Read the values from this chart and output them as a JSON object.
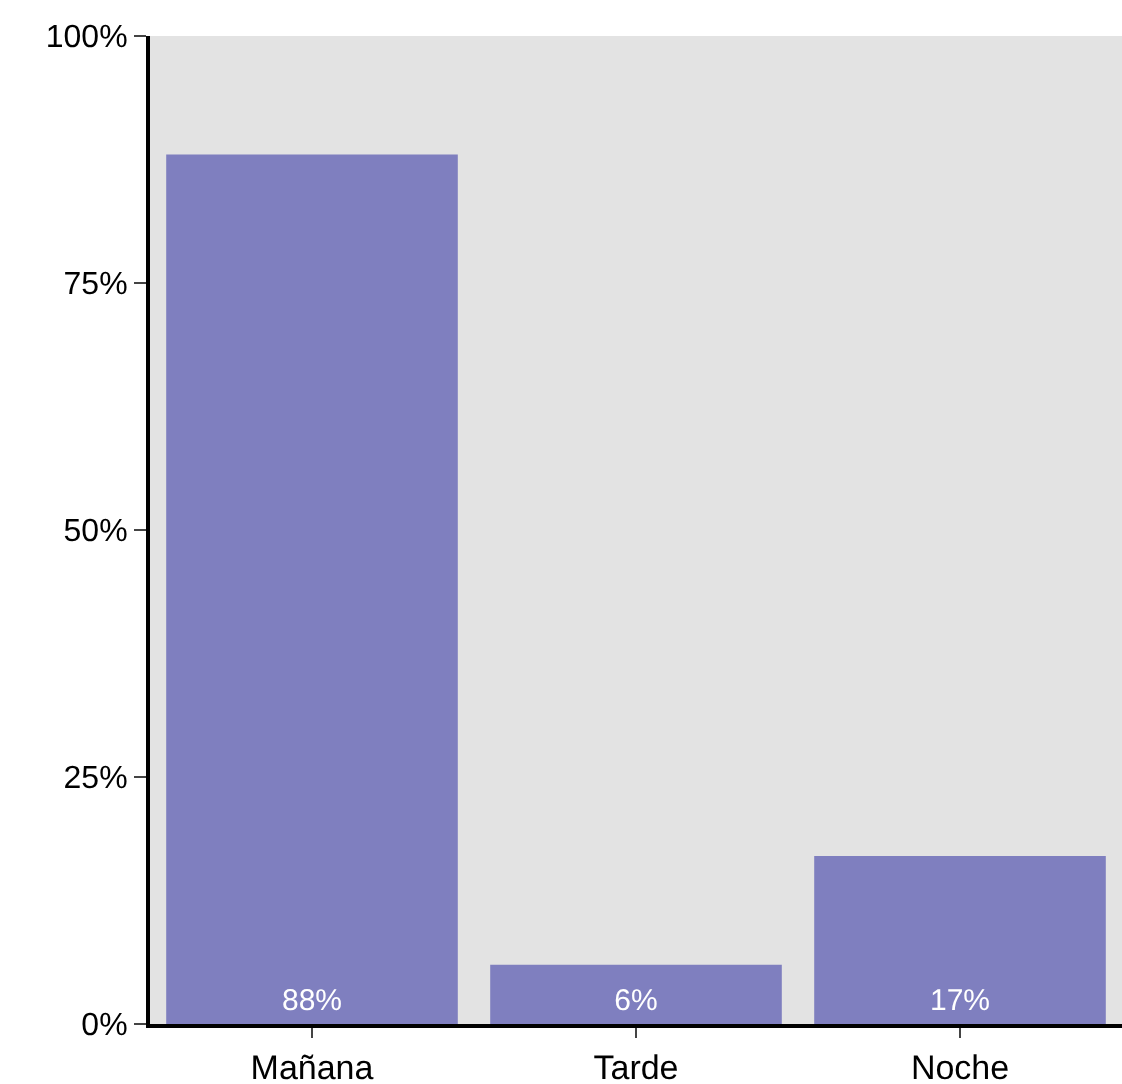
{
  "chart_data": {
    "type": "bar",
    "categories": [
      "Mañana",
      "Tarde",
      "Noche"
    ],
    "values": [
      88,
      6,
      17
    ],
    "value_labels": [
      "88%",
      "6%",
      "17%"
    ],
    "color": "#7f7fbf",
    "ylim": [
      0,
      100
    ],
    "yticks": [
      {
        "value": 0,
        "label": "0%"
      },
      {
        "value": 25,
        "label": "25%"
      },
      {
        "value": 50,
        "label": "50%"
      },
      {
        "value": 75,
        "label": "75%"
      },
      {
        "value": 100,
        "label": "100%"
      }
    ],
    "grid": false
  }
}
